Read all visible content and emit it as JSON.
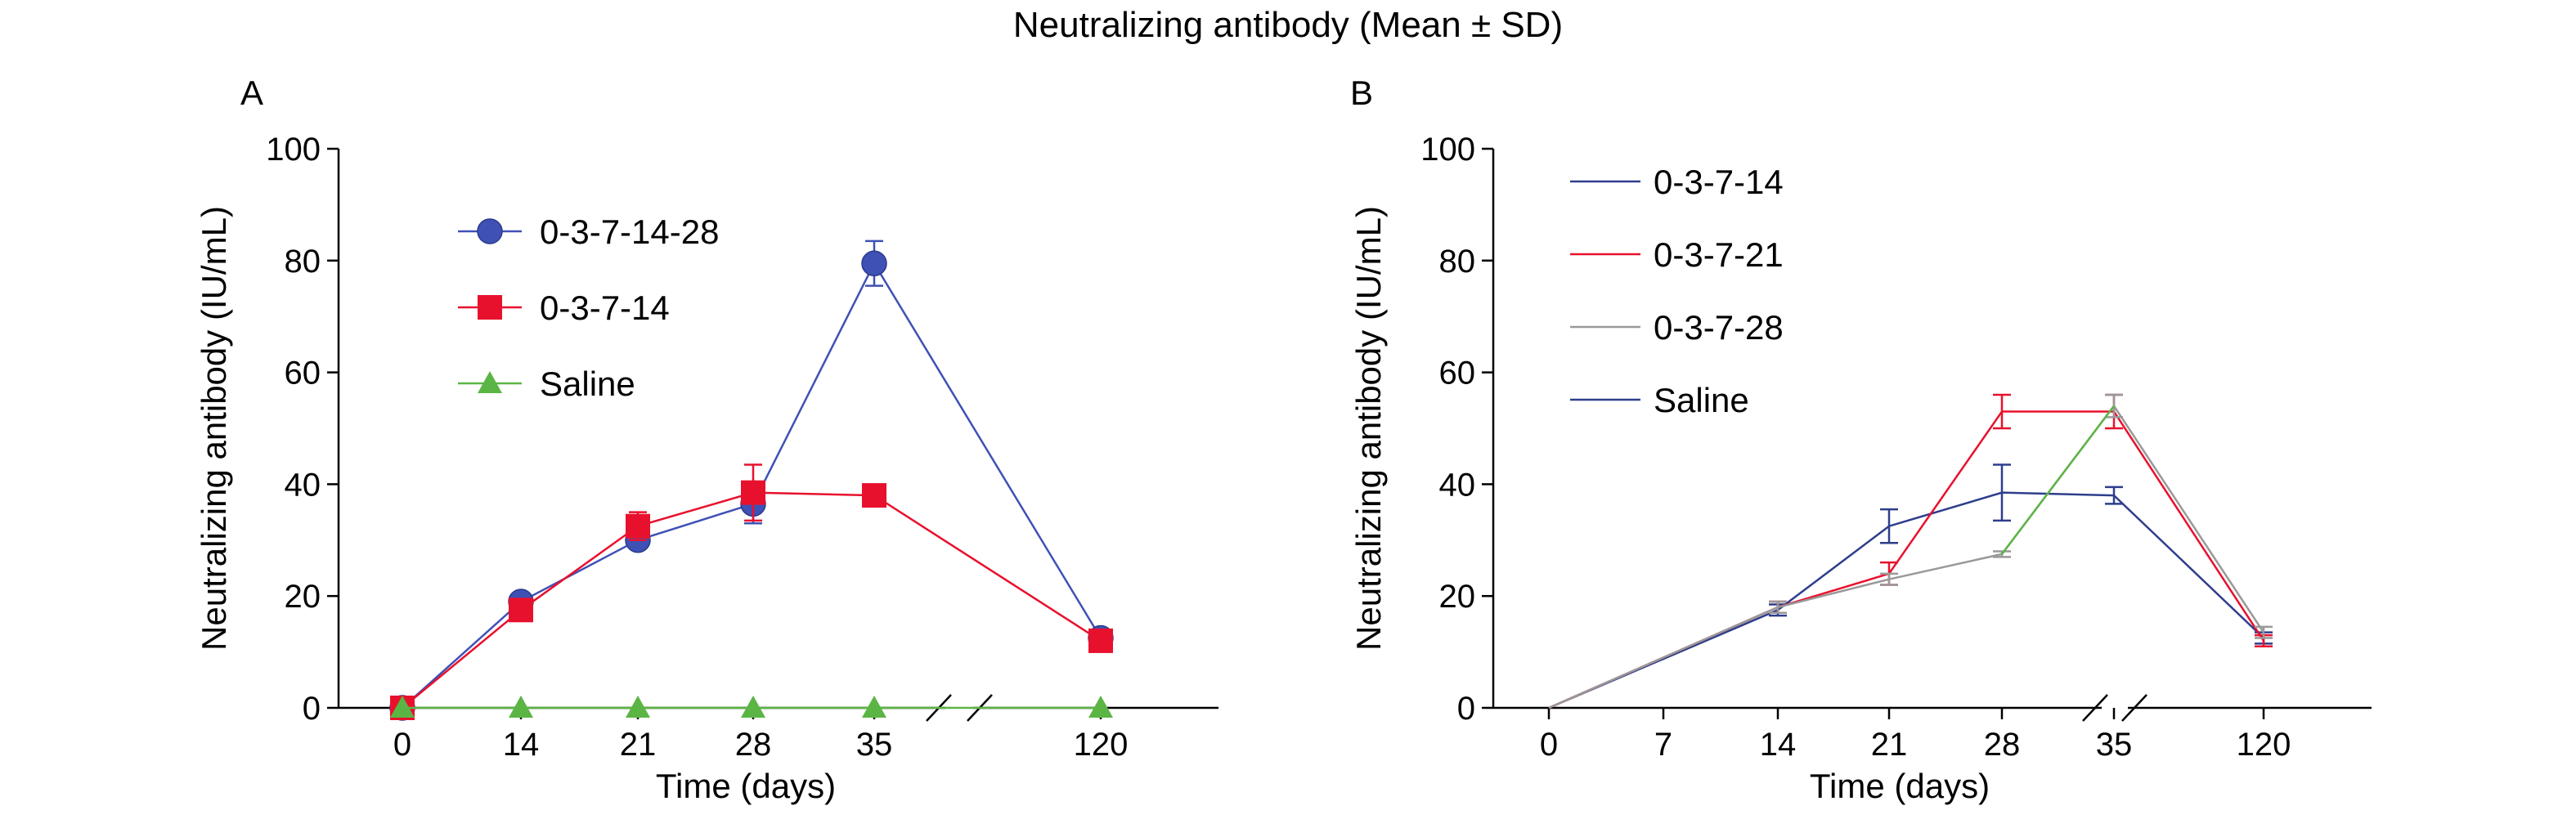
{
  "figure": {
    "title": "Neutralizing antibody (Mean ± SD)"
  },
  "colors": {
    "blue": "#3F51B5",
    "red": "#E8112D",
    "green": "#5BB544",
    "navy": "#2E3E8C",
    "gray": "#999999",
    "axis": "#000000"
  },
  "chart_data": [
    {
      "panel_label": "A",
      "type": "line",
      "xlabel": "Time (days)",
      "ylabel": "Neutralizing antibody (IU/mL)",
      "ylim": [
        0,
        100
      ],
      "yticks": [
        0,
        20,
        40,
        60,
        80,
        100
      ],
      "xticks": [
        "0",
        "14",
        "21",
        "28",
        "35",
        "120"
      ],
      "axis_break": "between 35 and 120",
      "legend_position": "top-left",
      "series": [
        {
          "name": "0-3-7-14-28",
          "marker": "circle",
          "color": "#3F51B5",
          "x": [
            "0",
            "14",
            "21",
            "28",
            "35",
            "120"
          ],
          "y": [
            0,
            19,
            30,
            36.5,
            79.5,
            12.5
          ],
          "err": [
            0,
            1,
            1.5,
            3.5,
            4,
            1
          ]
        },
        {
          "name": "0-3-7-14",
          "marker": "square",
          "color": "#E8112D",
          "x": [
            "0",
            "14",
            "21",
            "28",
            "35",
            "120"
          ],
          "y": [
            0,
            17.5,
            32.5,
            38.5,
            38,
            12
          ],
          "err": [
            0,
            1,
            2.5,
            5,
            1,
            1
          ]
        },
        {
          "name": "Saline",
          "marker": "triangle",
          "color": "#5BB544",
          "x": [
            "0",
            "14",
            "21",
            "28",
            "35",
            "120"
          ],
          "y": [
            0,
            0,
            0,
            0,
            0,
            0
          ],
          "err": [
            0,
            0,
            0,
            0,
            0,
            0
          ]
        }
      ]
    },
    {
      "panel_label": "B",
      "type": "line",
      "xlabel": "Time (days)",
      "ylabel": "Neutralizing antibody (IU/mL)",
      "ylim": [
        0,
        100
      ],
      "yticks": [
        0,
        20,
        40,
        60,
        80,
        100
      ],
      "xticks": [
        "0",
        "7",
        "14",
        "21",
        "28",
        "35",
        "120"
      ],
      "axis_break": "between 35 and 120",
      "legend_position": "top-left",
      "series": [
        {
          "name": "0-3-7-14",
          "color": "#2E3E8C",
          "x": [
            "0",
            "14",
            "21",
            "28",
            "35",
            "120"
          ],
          "y": [
            0,
            17.5,
            32.5,
            38.5,
            38,
            12.5
          ],
          "err": [
            0,
            1,
            3,
            5,
            1.5,
            1
          ]
        },
        {
          "name": "0-3-7-21",
          "color": "#E8112D",
          "x": [
            "0",
            "14",
            "21",
            "28",
            "35",
            "120"
          ],
          "y": [
            0,
            18,
            24,
            53,
            53,
            12
          ],
          "err": [
            0,
            1,
            2,
            3,
            3,
            1
          ]
        },
        {
          "name": "0-3-7-28",
          "color": "#999999",
          "x": [
            "0",
            "14",
            "21",
            "28",
            "35",
            "120"
          ],
          "y": [
            0,
            18,
            23,
            27.5,
            54,
            13.5
          ],
          "err": [
            0,
            1,
            1,
            0.5,
            2,
            1
          ]
        },
        {
          "name": "Saline",
          "color": "#2E3E8C",
          "x": [],
          "y": [],
          "err": []
        }
      ],
      "overlay_segment": {
        "color": "#5BB544",
        "from": [
          "28",
          27.5
        ],
        "to": [
          "35",
          54
        ]
      }
    }
  ]
}
